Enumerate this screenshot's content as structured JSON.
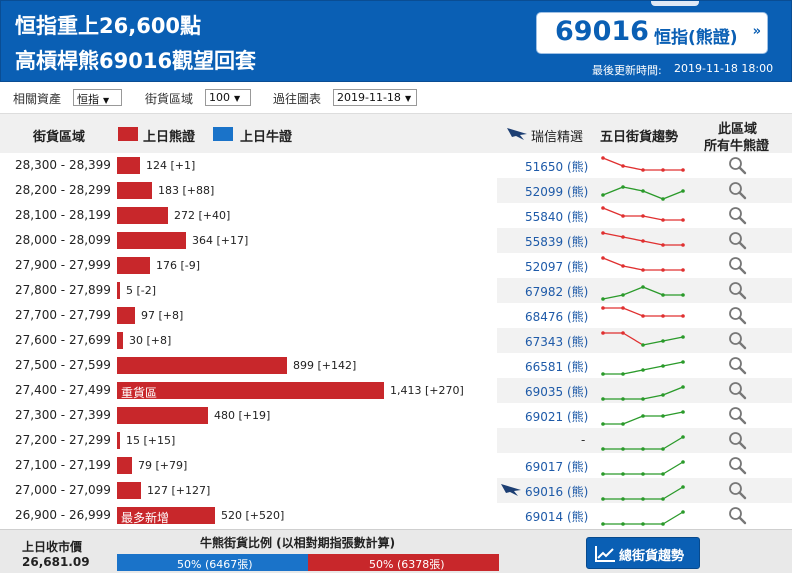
{
  "header": {
    "title_line1": "恒指重上26,600點",
    "title_line2": "高槓桿熊69016觀望回套",
    "quote": {
      "value": "69016",
      "name": "恒指(熊證)",
      "arrow": "»"
    },
    "update_label": "最後更新時間:",
    "update_time": "2019-11-18 18:00"
  },
  "filters": {
    "asset_label": "相關資產",
    "asset_value": "恒指",
    "zone_label": "街貨區域",
    "zone_value": "100",
    "chart_label": "過往圖表",
    "chart_value": "2019-11-18"
  },
  "columns": {
    "range": "街貨區域",
    "bear_legend": "上日熊證",
    "bull_legend": "上日牛證",
    "pick": "瑞信精選",
    "trend": "五日街貨趨勢",
    "all_line1": "此區域",
    "all_line2": "所有牛熊證"
  },
  "colors": {
    "bear": "#c8272b",
    "bull": "#1a73c9",
    "header": "#0a5fb4",
    "trend_down": "#e03030",
    "trend_up": "#2a9a2a"
  },
  "icons": {
    "magnifier": "search-icon",
    "eagle": "eagle-icon",
    "trend": "trend-chart-icon"
  },
  "rows": [
    {
      "range": "28,300 - 28,399",
      "value": 124,
      "label": "124 [+1]",
      "code": "51650 (熊)",
      "trend": [
        5,
        3,
        2,
        2,
        2
      ],
      "color": "red"
    },
    {
      "range": "28,200 - 28,299",
      "value": 183,
      "label": "183 [+88]",
      "code": "52099 (熊)",
      "trend": [
        2,
        4,
        3,
        1,
        3
      ],
      "color": "green"
    },
    {
      "range": "28,100 - 28,199",
      "value": 272,
      "label": "272 [+40]",
      "code": "55840 (熊)",
      "trend": [
        5,
        3,
        3,
        2,
        2
      ],
      "color": "red"
    },
    {
      "range": "28,000 - 28,099",
      "value": 364,
      "label": "364 [+17]",
      "code": "55839 (熊)",
      "trend": [
        5,
        4,
        3,
        2,
        2
      ],
      "color": "red"
    },
    {
      "range": "27,900 - 27,999",
      "value": 176,
      "label": "176 [-9]",
      "code": "52097 (熊)",
      "trend": [
        5,
        3,
        2,
        2,
        2
      ],
      "color": "red"
    },
    {
      "range": "27,800 - 27,899",
      "value": 5,
      "label": "5 [-2]",
      "code": "67982 (熊)",
      "trend": [
        1,
        2,
        4,
        2,
        2
      ],
      "color": "green"
    },
    {
      "range": "27,700 - 27,799",
      "value": 97,
      "label": "97 [+8]",
      "code": "68476 (熊)",
      "trend": [
        5,
        5,
        3,
        3,
        3
      ],
      "color": "red"
    },
    {
      "range": "27,600 - 27,699",
      "value": 30,
      "label": "30 [+8]",
      "code": "67343 (熊)",
      "trend": [
        5,
        5,
        2,
        3,
        4
      ],
      "color": "mixed"
    },
    {
      "range": "27,500 - 27,599",
      "value": 899,
      "label": "899 [+142]",
      "code": "66581 (熊)",
      "trend": [
        1,
        1,
        2,
        3,
        4
      ],
      "color": "green"
    },
    {
      "range": "27,400 - 27,499",
      "value": 1413,
      "label": "1,413 [+270]",
      "inside": "重貨區",
      "code": "69035 (熊)",
      "trend": [
        1,
        1,
        1,
        2,
        4
      ],
      "color": "green"
    },
    {
      "range": "27,300 - 27,399",
      "value": 480,
      "label": "480 [+19]",
      "code": "69021 (熊)",
      "trend": [
        1,
        1,
        3,
        3,
        4
      ],
      "color": "green"
    },
    {
      "range": "27,200 - 27,299",
      "value": 15,
      "label": "15 [+15]",
      "code": "-",
      "trend": [
        1,
        1,
        1,
        1,
        4
      ],
      "color": "green"
    },
    {
      "range": "27,100 - 27,199",
      "value": 79,
      "label": "79 [+79]",
      "code": "69017 (熊)",
      "trend": [
        1,
        1,
        1,
        1,
        4
      ],
      "color": "green"
    },
    {
      "range": "27,000 - 27,099",
      "value": 127,
      "label": "127 [+127]",
      "code": "69016 (熊)",
      "eagle": true,
      "trend": [
        1,
        1,
        1,
        1,
        4
      ],
      "color": "green"
    },
    {
      "range": "26,900 - 26,999",
      "value": 520,
      "label": "520 [+520]",
      "inside": "最多新增",
      "code": "69014 (熊)",
      "trend": [
        1,
        1,
        1,
        1,
        4
      ],
      "color": "green"
    }
  ],
  "footer": {
    "close_label": "上日收市價",
    "close_value": "26,681.09",
    "ratio_title": "牛熊街貨比例 (以相對期指張數計算)",
    "bull_pct": 50,
    "bull_text": "50% (6467張)",
    "bear_text": "50% (6378張)",
    "trend_button": "總街貨趨勢"
  }
}
